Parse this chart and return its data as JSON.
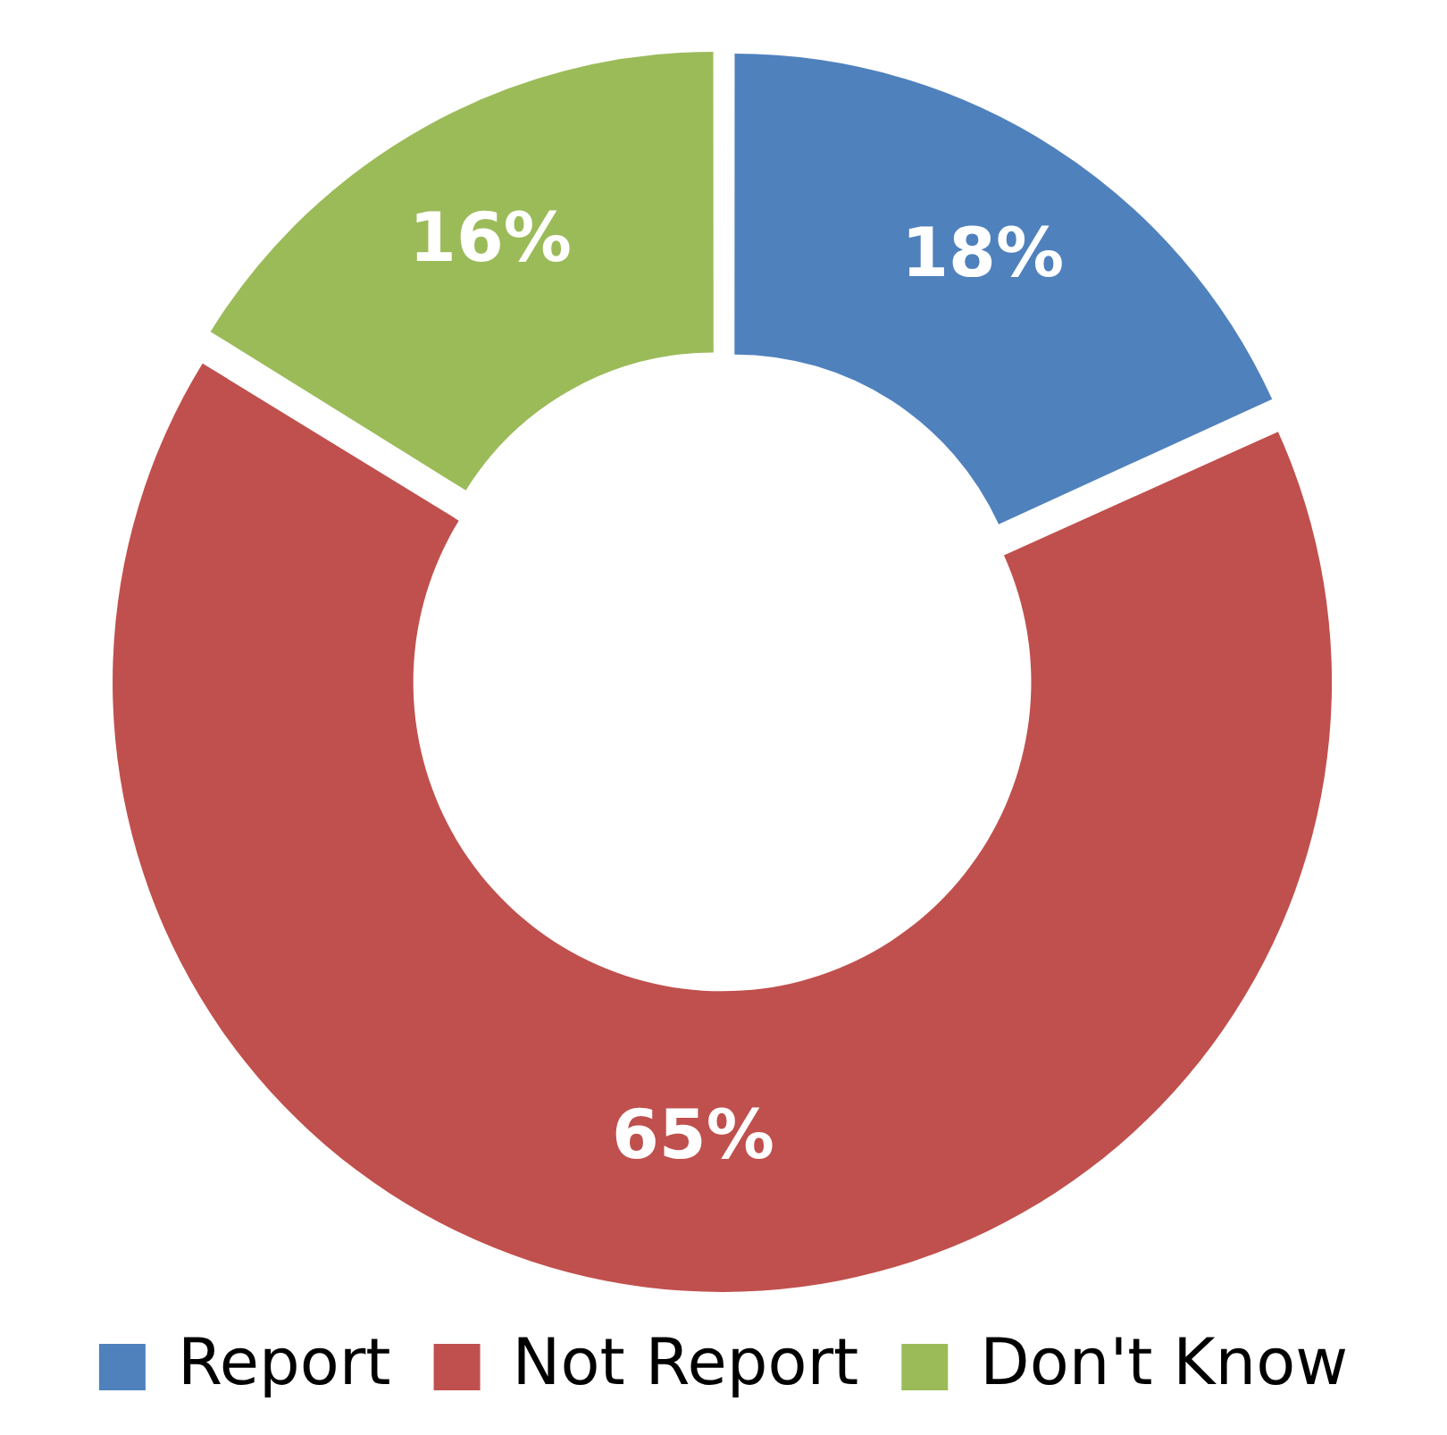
{
  "chart_data": {
    "type": "donut",
    "categories": [
      "Report",
      "Not Report",
      "Don't Know"
    ],
    "values": [
      18,
      65,
      16
    ],
    "colors": [
      "#4f81bd",
      "#c0504d",
      "#9bbb59"
    ],
    "value_labels": [
      "18%",
      "65%",
      "16%"
    ],
    "legend": "bottom"
  }
}
